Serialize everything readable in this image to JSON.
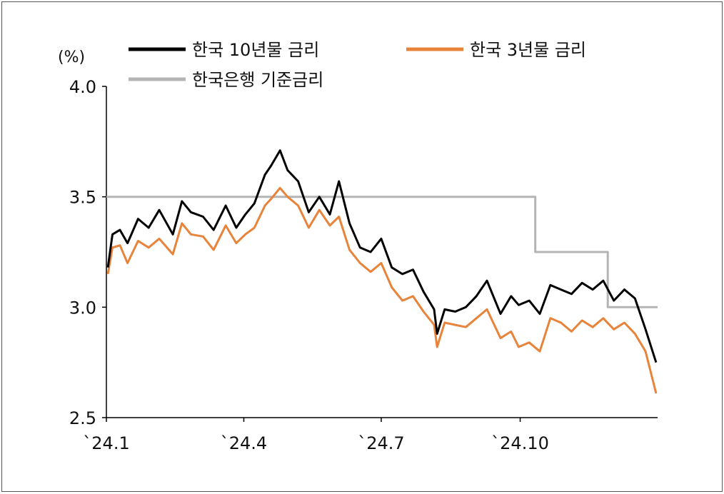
{
  "chart_data": {
    "type": "line",
    "unit": "(%)",
    "ylim": [
      2.5,
      4.0
    ],
    "yticks": [
      "4.0",
      "3.5",
      "3.0",
      "2.5"
    ],
    "yticks_values": [
      4.0,
      3.5,
      3.0,
      2.5
    ],
    "xticks": [
      "`24.1",
      "`24.4",
      "`24.7",
      "`24.10"
    ],
    "xticks_dates": [
      "2024-01-01",
      "2024-04-01",
      "2024-07-01",
      "2024-10-01"
    ],
    "xlim": [
      "2024-01-01",
      "2024-12-31"
    ],
    "legend": {
      "placement": "top"
    },
    "series": [
      {
        "name": "한국 10년물 금리",
        "color": "#000000",
        "x": [
          "2024-01-02",
          "2024-01-05",
          "2024-01-10",
          "2024-01-15",
          "2024-01-22",
          "2024-01-29",
          "2024-02-05",
          "2024-02-14",
          "2024-02-20",
          "2024-02-26",
          "2024-03-05",
          "2024-03-12",
          "2024-03-20",
          "2024-03-27",
          "2024-04-02",
          "2024-04-08",
          "2024-04-15",
          "2024-04-19",
          "2024-04-25",
          "2024-04-30",
          "2024-05-07",
          "2024-05-14",
          "2024-05-21",
          "2024-05-28",
          "2024-06-03",
          "2024-06-10",
          "2024-06-17",
          "2024-06-24",
          "2024-07-01",
          "2024-07-08",
          "2024-07-15",
          "2024-07-22",
          "2024-07-29",
          "2024-08-05",
          "2024-08-07",
          "2024-08-12",
          "2024-08-19",
          "2024-08-26",
          "2024-09-02",
          "2024-09-09",
          "2024-09-18",
          "2024-09-25",
          "2024-09-30",
          "2024-10-07",
          "2024-10-14",
          "2024-10-21",
          "2024-10-28",
          "2024-11-04",
          "2024-11-11",
          "2024-11-18",
          "2024-11-25",
          "2024-12-02",
          "2024-12-09",
          "2024-12-16",
          "2024-12-23",
          "2024-12-30"
        ],
        "y": [
          3.18,
          3.33,
          3.35,
          3.29,
          3.4,
          3.36,
          3.44,
          3.33,
          3.48,
          3.43,
          3.41,
          3.35,
          3.46,
          3.36,
          3.42,
          3.47,
          3.6,
          3.64,
          3.71,
          3.62,
          3.57,
          3.43,
          3.5,
          3.42,
          3.57,
          3.38,
          3.27,
          3.25,
          3.31,
          3.18,
          3.15,
          3.17,
          3.07,
          2.99,
          2.88,
          2.99,
          2.98,
          3.0,
          3.05,
          3.12,
          2.97,
          3.05,
          3.01,
          3.03,
          2.97,
          3.1,
          3.08,
          3.06,
          3.11,
          3.08,
          3.12,
          3.03,
          3.08,
          3.04,
          2.9,
          2.75
        ]
      },
      {
        "name": "한국 3년물 금리",
        "color": "#E8833A",
        "x": [
          "2024-01-02",
          "2024-01-05",
          "2024-01-10",
          "2024-01-15",
          "2024-01-22",
          "2024-01-29",
          "2024-02-05",
          "2024-02-14",
          "2024-02-20",
          "2024-02-26",
          "2024-03-05",
          "2024-03-12",
          "2024-03-20",
          "2024-03-27",
          "2024-04-02",
          "2024-04-08",
          "2024-04-15",
          "2024-04-19",
          "2024-04-25",
          "2024-04-30",
          "2024-05-07",
          "2024-05-14",
          "2024-05-21",
          "2024-05-28",
          "2024-06-03",
          "2024-06-10",
          "2024-06-17",
          "2024-06-24",
          "2024-07-01",
          "2024-07-08",
          "2024-07-15",
          "2024-07-22",
          "2024-07-29",
          "2024-08-05",
          "2024-08-07",
          "2024-08-12",
          "2024-08-19",
          "2024-08-26",
          "2024-09-02",
          "2024-09-09",
          "2024-09-18",
          "2024-09-25",
          "2024-09-30",
          "2024-10-07",
          "2024-10-14",
          "2024-10-21",
          "2024-10-28",
          "2024-11-04",
          "2024-11-11",
          "2024-11-18",
          "2024-11-25",
          "2024-12-02",
          "2024-12-09",
          "2024-12-16",
          "2024-12-23",
          "2024-12-30"
        ],
        "y": [
          3.15,
          3.27,
          3.28,
          3.2,
          3.3,
          3.27,
          3.31,
          3.24,
          3.38,
          3.33,
          3.32,
          3.26,
          3.37,
          3.29,
          3.33,
          3.36,
          3.46,
          3.49,
          3.54,
          3.5,
          3.46,
          3.36,
          3.44,
          3.37,
          3.41,
          3.26,
          3.2,
          3.16,
          3.2,
          3.09,
          3.03,
          3.05,
          2.98,
          2.92,
          2.82,
          2.93,
          2.92,
          2.91,
          2.95,
          2.99,
          2.86,
          2.89,
          2.82,
          2.84,
          2.8,
          2.95,
          2.93,
          2.89,
          2.94,
          2.91,
          2.95,
          2.9,
          2.93,
          2.88,
          2.8,
          2.61
        ]
      },
      {
        "name": "한국은행 기준금리",
        "color": "#B4B4B4",
        "x": [
          "2024-01-01",
          "2024-10-11",
          "2024-10-11",
          "2024-11-28",
          "2024-11-28",
          "2024-12-31"
        ],
        "y": [
          3.5,
          3.5,
          3.25,
          3.25,
          3.0,
          3.0
        ]
      }
    ]
  }
}
